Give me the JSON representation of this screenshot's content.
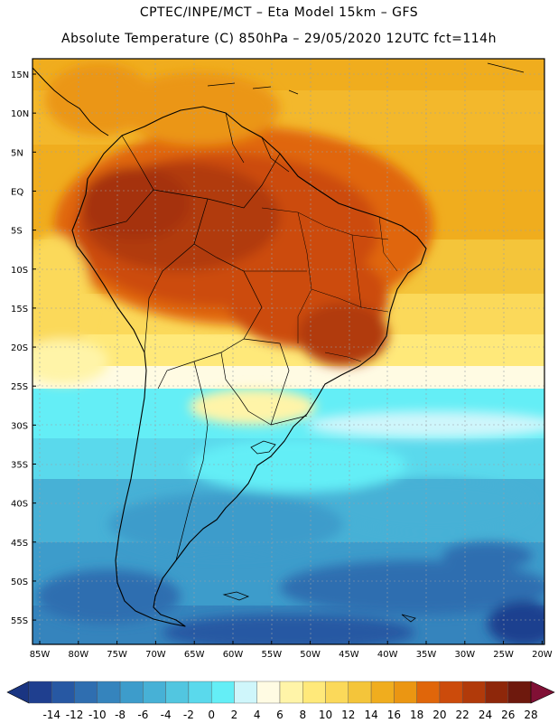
{
  "header": {
    "line1": "CPTEC/INPE/MCT –  Eta Model 15km – GFS",
    "line2": "Absolute Temperature (C) 850hPa – 29/05/2020 12UTC fct=114h"
  },
  "map": {
    "lat_ticks": [
      "15N",
      "10N",
      "5N",
      "EQ",
      "5S",
      "10S",
      "15S",
      "20S",
      "25S",
      "30S",
      "35S",
      "40S",
      "45S",
      "50S",
      "55S"
    ],
    "lon_ticks": [
      "85W",
      "80W",
      "75W",
      "70W",
      "65W",
      "60W",
      "55W",
      "50W",
      "45W",
      "40W",
      "35W",
      "30W",
      "25W",
      "20W"
    ],
    "lat_range": [
      16.5,
      -58.5
    ],
    "lon_range": [
      -86,
      -20
    ]
  },
  "colorbar": {
    "labels": [
      "-14",
      "-12",
      "-10",
      "-8",
      "-6",
      "-4",
      "-2",
      "0",
      "2",
      "4",
      "6",
      "8",
      "10",
      "12",
      "14",
      "16",
      "18",
      "20",
      "22",
      "24",
      "26",
      "28"
    ],
    "colors": [
      "#1f3f8f",
      "#2758a3",
      "#2f6eb0",
      "#3584bd",
      "#3d9ccb",
      "#47b1d6",
      "#52c6e0",
      "#5ad9ec",
      "#64eef6",
      "#cff6fb",
      "#fffbe3",
      "#fff4a8",
      "#ffe97a",
      "#fbd95a",
      "#f4c53a",
      "#f0ad1e",
      "#eb9612",
      "#e0660a",
      "#cc4b0b",
      "#b13a0a",
      "#8e270a",
      "#6e190d"
    ],
    "under_color": "#1a3582",
    "over_color": "#801035"
  }
}
